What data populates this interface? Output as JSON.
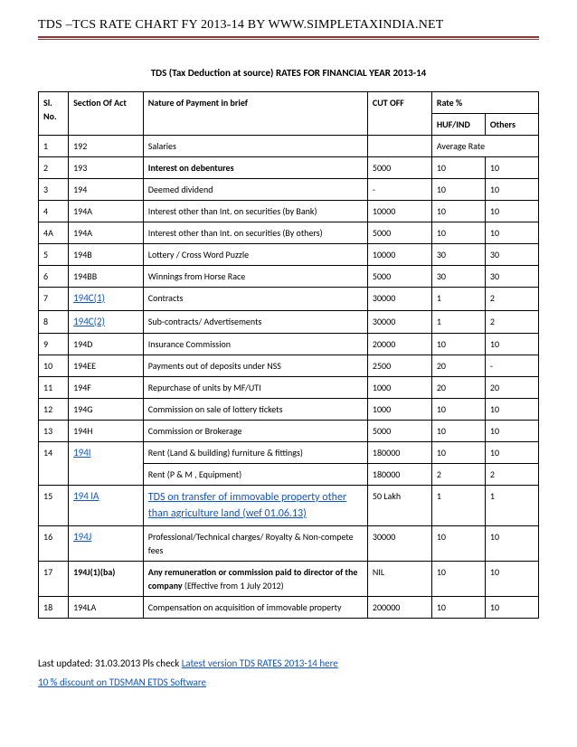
{
  "header": {
    "title": "TDS –TCS RATE CHART FY 2013-14 BY WWW.SIMPLETAXINDIA.NET"
  },
  "tableTitle": "TDS (Tax Deduction at source) RATES FOR FINANCIAL YEAR 2013-14",
  "tableHeaders": {
    "sl": "Sl. No.",
    "section": "Section Of Act",
    "nature": "Nature of Payment in brief",
    "cutoff": "CUT OFF",
    "rate": "Rate %",
    "huf": "HUF/IND",
    "others": "Others"
  },
  "rows": [
    {
      "sl": "1",
      "section": "192",
      "sectionLink": false,
      "nature": "Salaries",
      "natureBold": false,
      "natureLink": false,
      "cutoff": "",
      "rateMerged": true,
      "rateMergedText": "Average Rate",
      "huf": "",
      "others": ""
    },
    {
      "sl": "2",
      "section": "193",
      "sectionLink": false,
      "nature": "Interest on debentures",
      "natureBold": true,
      "natureLink": false,
      "cutoff": "5000",
      "rateMerged": false,
      "huf": "10",
      "others": "10"
    },
    {
      "sl": "3",
      "section": "194",
      "sectionLink": false,
      "nature": "Deemed dividend",
      "natureBold": false,
      "natureLink": false,
      "cutoff": "-",
      "rateMerged": false,
      "huf": "10",
      "others": "10"
    },
    {
      "sl": "4",
      "section": "194A",
      "sectionLink": false,
      "nature": "Interest other than Int. on securities (by Bank)",
      "natureBold": false,
      "natureLink": false,
      "cutoff": "10000",
      "rateMerged": false,
      "huf": "10",
      "others": "10"
    },
    {
      "sl": "4A",
      "section": "194A",
      "sectionLink": false,
      "nature": "Interest other than Int. on securities (By others)",
      "natureBold": false,
      "natureLink": false,
      "cutoff": "5000",
      "rateMerged": false,
      "huf": "10",
      "others": "10"
    },
    {
      "sl": "5",
      "section": "194B",
      "sectionLink": false,
      "nature": "Lottery / Cross Word Puzzle",
      "natureBold": false,
      "natureLink": false,
      "cutoff": "10000",
      "rateMerged": false,
      "huf": "30",
      "others": "30"
    },
    {
      "sl": "6",
      "section": "194BB",
      "sectionLink": false,
      "nature": "Winnings from Horse Race",
      "natureBold": false,
      "natureLink": false,
      "cutoff": "5000",
      "rateMerged": false,
      "huf": "30",
      "others": "30"
    },
    {
      "sl": "7",
      "section": "194C(1)",
      "sectionLink": true,
      "nature": "Contracts",
      "natureBold": false,
      "natureLink": false,
      "cutoff": "30000",
      "rateMerged": false,
      "huf": "1",
      "others": "2"
    },
    {
      "sl": "8",
      "section": "194C(2)",
      "sectionLink": true,
      "nature": "Sub-contracts/ Advertisements",
      "natureBold": false,
      "natureLink": false,
      "cutoff": "30000",
      "rateMerged": false,
      "huf": "1",
      "others": "2"
    },
    {
      "sl": "9",
      "section": "194D",
      "sectionLink": false,
      "nature": "Insurance Commission",
      "natureBold": false,
      "natureLink": false,
      "cutoff": "20000",
      "rateMerged": false,
      "huf": "10",
      "others": "10"
    },
    {
      "sl": "10",
      "section": "194EE",
      "sectionLink": false,
      "nature": "Payments out of deposits under NSS",
      "natureBold": false,
      "natureLink": false,
      "cutoff": "2500",
      "rateMerged": false,
      "huf": "20",
      "others": "-"
    },
    {
      "sl": "11",
      "section": "194F",
      "sectionLink": false,
      "nature": "Repurchase of units by MF/UTI",
      "natureBold": false,
      "natureLink": false,
      "cutoff": "1000",
      "rateMerged": false,
      "huf": "20",
      "others": "20"
    },
    {
      "sl": "12",
      "section": "194G",
      "sectionLink": false,
      "nature": "Commission on sale of lottery tickets",
      "natureBold": false,
      "natureLink": false,
      "cutoff": "1000",
      "rateMerged": false,
      "huf": "10",
      "others": "10"
    },
    {
      "sl": "13",
      "section": "194H",
      "sectionLink": false,
      "nature": "Commission or Brokerage",
      "natureBold": false,
      "natureLink": false,
      "cutoff": "5000",
      "rateMerged": false,
      "huf": "10",
      "others": "10"
    },
    {
      "sl": "14",
      "section": "194I",
      "sectionLink": true,
      "nature": "Rent (Land & building) furniture & fittings)",
      "natureBold": false,
      "natureLink": false,
      "cutoff": "180000",
      "rateMerged": false,
      "huf": "10",
      "others": "10",
      "extraRow": {
        "nature": "Rent (P & M , Equipment)",
        "cutoff": "180000",
        "huf": "2",
        "others": "2"
      }
    },
    {
      "sl": "15",
      "section": "194 IA",
      "sectionLink": true,
      "nature": "TDS on transfer of immovable property other than agriculture land (wef 01.06.13)",
      "natureBold": false,
      "natureLink": true,
      "cutoff": "50 Lakh",
      "rateMerged": false,
      "huf": "1",
      "others": "1"
    },
    {
      "sl": "16",
      "section": "194J",
      "sectionLink": true,
      "nature": "Professional/Technical charges/ Royalty & Non-compete fees",
      "natureBold": false,
      "natureLink": false,
      "cutoff": "30000",
      "rateMerged": false,
      "huf": "10",
      "others": "10"
    },
    {
      "sl": "17",
      "section": "194J(1)(ba)",
      "sectionLink": false,
      "sectionBold": true,
      "nature": "Any remuneration or commission paid to director of the company",
      "natureBold": true,
      "natureLink": false,
      "natureSuffix": " (Effective from 1 July 2012)",
      "cutoff": "NIL",
      "rateMerged": false,
      "huf": "10",
      "others": "10"
    },
    {
      "sl": "18",
      "section": "194LA",
      "sectionLink": false,
      "nature": "Compensation on acquisition of immovable property",
      "natureBold": false,
      "natureLink": false,
      "cutoff": "200000",
      "rateMerged": false,
      "huf": "10",
      "others": "10"
    }
  ],
  "footer": {
    "lastUpdated": "Last updated: 31.03.2013 Pls check ",
    "latestLink": "Latest  version TDS RATES 2013-14 here",
    "discountLink": "10 % discount on TDSMAN ETDS Software"
  },
  "colors": {
    "ruleColor": "#8b3a3a",
    "linkColor": "#1155cc",
    "text": "#000000",
    "background": "#ffffff"
  }
}
